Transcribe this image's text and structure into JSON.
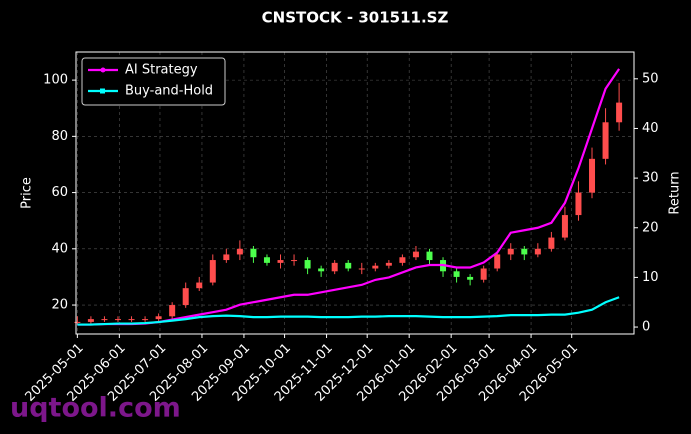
{
  "chart_data": {
    "type": "candlestick",
    "title": "CNSTOCK - 301511.SZ",
    "ylabel": "Price",
    "y2label": "Return",
    "watermark": "uqtool.com",
    "up_color": "#ff4d4d",
    "down_color": "#4dff4d",
    "grid": true,
    "legend": "upper left",
    "x": [
      "2025-05-01",
      "2025-05-11",
      "2025-05-21",
      "2025-05-31",
      "2025-06-10",
      "2025-06-20",
      "2025-06-30",
      "2025-07-10",
      "2025-07-20",
      "2025-07-30",
      "2025-08-09",
      "2025-08-19",
      "2025-08-29",
      "2025-09-08",
      "2025-09-18",
      "2025-09-28",
      "2025-10-08",
      "2025-10-18",
      "2025-10-28",
      "2025-11-07",
      "2025-11-17",
      "2025-11-27",
      "2025-12-07",
      "2025-12-17",
      "2025-12-27",
      "2026-01-06",
      "2026-01-16",
      "2026-01-26",
      "2026-02-05",
      "2026-02-15",
      "2026-02-25",
      "2026-03-07",
      "2026-03-17",
      "2026-03-27",
      "2026-04-06",
      "2026-04-16",
      "2026-04-26",
      "2026-05-06",
      "2026-05-16",
      "2026-05-26",
      "2026-06-05"
    ],
    "open": [
      14,
      14,
      15,
      15,
      15,
      15,
      15,
      16,
      20,
      26,
      28,
      36,
      38,
      40,
      37,
      35,
      36,
      36,
      33,
      32,
      35,
      33,
      33,
      34,
      35,
      37,
      39,
      36,
      32,
      30,
      29,
      33,
      38,
      40,
      38,
      40,
      44,
      52,
      60,
      72,
      85
    ],
    "high": [
      16,
      16,
      16,
      16,
      16,
      16,
      17,
      21,
      28,
      30,
      38,
      40,
      43,
      41,
      38,
      38,
      38,
      37,
      34,
      36,
      36,
      35,
      35,
      36,
      38,
      41,
      40,
      37,
      33,
      31,
      34,
      39,
      42,
      41,
      42,
      46,
      55,
      64,
      76,
      90,
      99
    ],
    "low": [
      13,
      13,
      14,
      14,
      14,
      14,
      14,
      15,
      19,
      25,
      27,
      35,
      36,
      35,
      34,
      33,
      34,
      31,
      30,
      31,
      32,
      31,
      32,
      33,
      34,
      36,
      34,
      30,
      28,
      27,
      28,
      32,
      36,
      36,
      37,
      39,
      43,
      50,
      58,
      70,
      82
    ],
    "close": [
      14,
      15,
      15,
      15,
      15,
      15,
      16,
      20,
      26,
      28,
      36,
      38,
      40,
      37,
      35,
      36,
      36,
      33,
      32,
      35,
      33,
      33,
      34,
      35,
      37,
      39,
      36,
      32,
      30,
      29,
      33,
      38,
      40,
      38,
      40,
      44,
      52,
      60,
      72,
      85,
      92
    ],
    "series": [
      {
        "name": "AI Strategy",
        "color": "#ff00ff",
        "axis": "y2",
        "marker": "circle",
        "values": [
          0.5,
          0.5,
          0.6,
          0.6,
          0.6,
          0.7,
          1,
          1.5,
          2,
          2.5,
          3,
          3.5,
          4.5,
          5,
          5.5,
          6,
          6.5,
          6.5,
          7,
          7.5,
          8,
          8.5,
          9.5,
          10,
          11,
          12,
          12.5,
          12.5,
          12,
          12,
          13,
          15,
          19,
          19.5,
          20,
          21,
          25,
          32,
          40,
          48,
          52
        ]
      },
      {
        "name": "Buy-and-Hold",
        "color": "#00ffff",
        "axis": "y2",
        "marker": "square",
        "values": [
          0.5,
          0.5,
          0.6,
          0.7,
          0.7,
          0.8,
          1,
          1.3,
          1.6,
          2,
          2.2,
          2.3,
          2.2,
          2,
          2,
          2.1,
          2.1,
          2.1,
          2,
          2,
          2,
          2.1,
          2.1,
          2.2,
          2.2,
          2.2,
          2.1,
          2,
          2,
          2,
          2.1,
          2.2,
          2.4,
          2.4,
          2.4,
          2.5,
          2.5,
          2.9,
          3.5,
          5,
          6
        ]
      }
    ],
    "xlim": [
      "2025-04-30",
      "2026-06-16"
    ],
    "xticks": [
      "2025-05-01",
      "2025-06-01",
      "2025-07-01",
      "2025-08-01",
      "2025-09-01",
      "2025-10-01",
      "2025-11-01",
      "2025-12-01",
      "2026-01-01",
      "2026-02-01",
      "2026-03-01",
      "2026-04-01",
      "2026-05-01"
    ],
    "ylim": [
      9.7,
      110
    ],
    "yticks": [
      20,
      40,
      60,
      80,
      100
    ],
    "y2lim": [
      -1.4,
      55.4
    ],
    "y2ticks": [
      0,
      10,
      20,
      30,
      40,
      50
    ]
  }
}
